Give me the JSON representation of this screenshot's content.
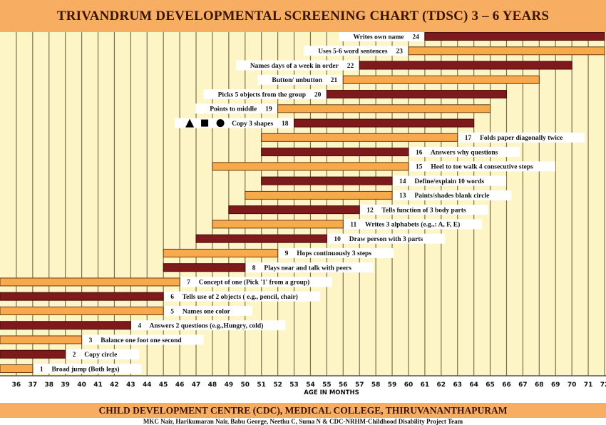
{
  "chart_data": {
    "type": "bar",
    "orientation": "horizontal-range",
    "title": "TRIVANDRUM DEVELOPMENTAL SCREENING CHART (TDSC) 3 – 6 YEARS",
    "xlabel": "AGE IN MONTHS",
    "ylabel": "",
    "xlim": [
      35,
      72
    ],
    "x_ticks": [
      36,
      37,
      38,
      39,
      40,
      41,
      42,
      43,
      44,
      45,
      46,
      47,
      48,
      49,
      50,
      51,
      52,
      53,
      54,
      55,
      56,
      57,
      58,
      59,
      60,
      61,
      62,
      63,
      64,
      65,
      66,
      67,
      68,
      69,
      70,
      71,
      72
    ],
    "grid": true,
    "colors": {
      "orange": "#F8A94C",
      "maroon": "#7E1A1C",
      "background": "#FDF5C6",
      "header": "#F8AE62"
    },
    "items": [
      {
        "n": 1,
        "label": "Broad jump (Both legs)",
        "start": 35,
        "end": 37,
        "color": "orange",
        "side": "right"
      },
      {
        "n": 2,
        "label": "Copy circle",
        "start": 35,
        "end": 39,
        "color": "maroon",
        "side": "right"
      },
      {
        "n": 3,
        "label": "Balance one foot one second",
        "start": 35,
        "end": 40,
        "color": "orange",
        "side": "right"
      },
      {
        "n": 4,
        "label": "Answers 2 questions (e.g.,Hungry, cold)",
        "start": 35,
        "end": 43,
        "color": "maroon",
        "side": "right"
      },
      {
        "n": 5,
        "label": "Names one color",
        "start": 35,
        "end": 45,
        "color": "orange",
        "side": "right"
      },
      {
        "n": 6,
        "label": "Tells use of 2 objects ( e.g., pencil, chair)",
        "start": 35,
        "end": 45,
        "color": "maroon",
        "side": "right"
      },
      {
        "n": 7,
        "label": "Concept of one (Pick '1' from a group)",
        "start": 35,
        "end": 46,
        "color": "orange",
        "side": "right"
      },
      {
        "n": 8,
        "label": "Plays near and talk with peers",
        "start": 45,
        "end": 50,
        "color": "maroon",
        "side": "right"
      },
      {
        "n": 9,
        "label": "Hops continuously 3 steps",
        "start": 45,
        "end": 52,
        "color": "orange",
        "side": "right"
      },
      {
        "n": 10,
        "label": "Draw person with 3 parts",
        "start": 47,
        "end": 55,
        "color": "maroon",
        "side": "right"
      },
      {
        "n": 11,
        "label": "Writes 3 alphabets (e.g.,: A, F, E)",
        "start": 48,
        "end": 56,
        "color": "orange",
        "side": "right"
      },
      {
        "n": 12,
        "label": "Tells function of 3 body parts",
        "start": 49,
        "end": 57,
        "color": "maroon",
        "side": "right"
      },
      {
        "n": 13,
        "label": "Paints/shades blank circle",
        "start": 50,
        "end": 59,
        "color": "orange",
        "side": "right"
      },
      {
        "n": 14,
        "label": "Define/explain 10 words",
        "start": 51,
        "end": 59,
        "color": "maroon",
        "side": "right"
      },
      {
        "n": 15,
        "label": "Heel to toe walk 4 consecutive steps",
        "start": 48,
        "end": 60,
        "color": "orange",
        "side": "right"
      },
      {
        "n": 16,
        "label": "Answers why questions",
        "start": 51,
        "end": 60,
        "color": "maroon",
        "side": "right"
      },
      {
        "n": 17,
        "label": "Folds paper diagonally twice",
        "start": 51,
        "end": 63,
        "color": "orange",
        "side": "right"
      },
      {
        "n": 18,
        "label": "Copy 3 shapes",
        "start": 53,
        "end": 64,
        "color": "maroon",
        "side": "left",
        "shapes": [
          "triangle",
          "square",
          "circle"
        ]
      },
      {
        "n": 19,
        "label": "Points to middle",
        "start": 52,
        "end": 65,
        "color": "orange",
        "side": "left"
      },
      {
        "n": 20,
        "label": "Picks 5 objects from the group",
        "start": 55,
        "end": 66,
        "color": "maroon",
        "side": "left"
      },
      {
        "n": 21,
        "label": "Button/ unbutton",
        "start": 56,
        "end": 68,
        "color": "orange",
        "side": "left"
      },
      {
        "n": 22,
        "label": "Names days of a week in order",
        "start": 57,
        "end": 70,
        "color": "maroon",
        "side": "left"
      },
      {
        "n": 23,
        "label": "Uses 5-6 word sentences",
        "start": 60,
        "end": 72,
        "color": "orange",
        "side": "left"
      },
      {
        "n": 24,
        "label": "Writes own name",
        "start": 61,
        "end": 72,
        "color": "maroon",
        "side": "left"
      }
    ]
  },
  "footer": {
    "institution": "CHILD DEVELOPMENT CENTRE (CDC), MEDICAL COLLEGE, THIRUVANANTHAPURAM",
    "credits": "MKC Nair, Harikumaran Nair, Babu George, Neethu C, Suma N  & CDC-NRHM-Childhood Disability Project Team"
  }
}
